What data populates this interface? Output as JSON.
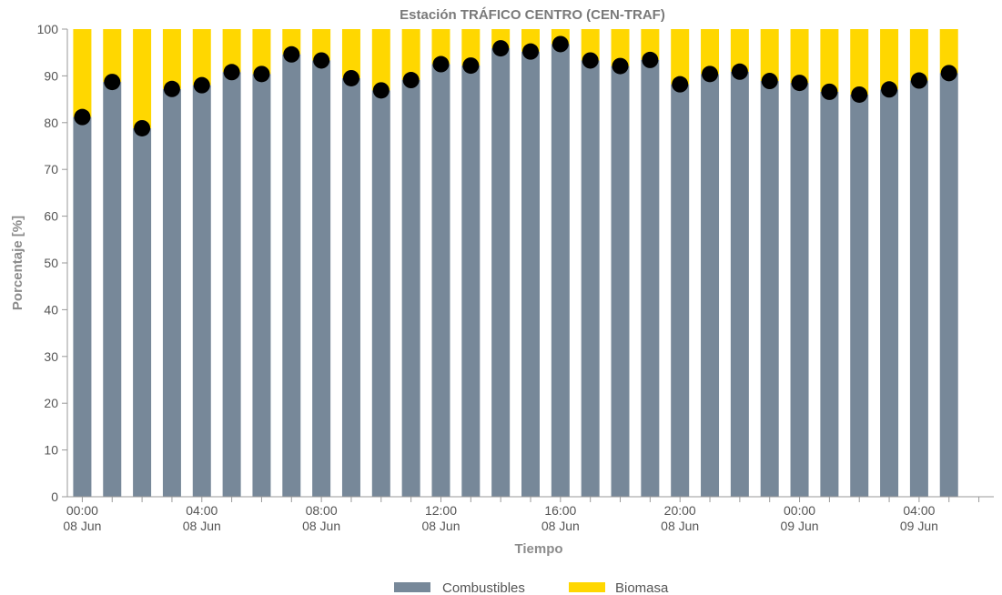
{
  "chart_data": {
    "type": "bar",
    "stacked": true,
    "title": "Estación TRÁFICO CENTRO (CEN-TRAF)",
    "xlabel": "Tiempo",
    "ylabel": "Porcentaje [%]",
    "ylim": [
      0,
      100
    ],
    "yticks": [
      0,
      10,
      20,
      30,
      40,
      50,
      60,
      70,
      80,
      90,
      100
    ],
    "grid": false,
    "legend_position": "bottom-center",
    "x_tick_labels": [
      {
        "index": 0,
        "time": "00:00",
        "date": "08 Jun"
      },
      {
        "index": 4,
        "time": "04:00",
        "date": "08 Jun"
      },
      {
        "index": 8,
        "time": "08:00",
        "date": "08 Jun"
      },
      {
        "index": 12,
        "time": "12:00",
        "date": "08 Jun"
      },
      {
        "index": 16,
        "time": "16:00",
        "date": "08 Jun"
      },
      {
        "index": 20,
        "time": "20:00",
        "date": "08 Jun"
      },
      {
        "index": 24,
        "time": "00:00",
        "date": "09 Jun"
      },
      {
        "index": 28,
        "time": "04:00",
        "date": "09 Jun"
      }
    ],
    "categories": [
      "00:00 08 Jun",
      "01:00 08 Jun",
      "02:00 08 Jun",
      "03:00 08 Jun",
      "04:00 08 Jun",
      "05:00 08 Jun",
      "06:00 08 Jun",
      "07:00 08 Jun",
      "08:00 08 Jun",
      "09:00 08 Jun",
      "10:00 08 Jun",
      "11:00 08 Jun",
      "12:00 08 Jun",
      "13:00 08 Jun",
      "14:00 08 Jun",
      "15:00 08 Jun",
      "16:00 08 Jun",
      "17:00 08 Jun",
      "18:00 08 Jun",
      "19:00 08 Jun",
      "20:00 08 Jun",
      "21:00 08 Jun",
      "22:00 08 Jun",
      "23:00 08 Jun",
      "00:00 09 Jun",
      "01:00 09 Jun",
      "02:00 09 Jun",
      "03:00 09 Jun",
      "04:00 09 Jun",
      "05:00 09 Jun",
      "06:00 09 Jun"
    ],
    "series": [
      {
        "name": "Combustibles",
        "color": "#778899",
        "values": [
          81.2,
          88.7,
          78.8,
          87.2,
          88.0,
          90.8,
          90.4,
          94.6,
          93.3,
          89.5,
          86.9,
          89.1,
          92.5,
          92.2,
          95.9,
          95.2,
          96.8,
          93.3,
          92.1,
          93.4,
          88.2,
          90.4,
          90.9,
          88.9,
          88.5,
          86.6,
          86.0,
          87.1,
          89.0,
          90.6,
          null
        ]
      },
      {
        "name": "Biomasa",
        "color": "#FFD700",
        "values": [
          18.8,
          11.3,
          21.2,
          12.8,
          12.0,
          9.2,
          9.6,
          5.4,
          6.7,
          10.5,
          13.1,
          10.9,
          7.5,
          7.8,
          4.1,
          4.8,
          3.2,
          6.7,
          7.9,
          6.6,
          11.8,
          9.6,
          9.1,
          11.1,
          11.5,
          13.4,
          14.0,
          12.9,
          11.0,
          9.4,
          null
        ]
      }
    ],
    "markers": {
      "color": "#000000",
      "follows": "Combustibles"
    }
  }
}
